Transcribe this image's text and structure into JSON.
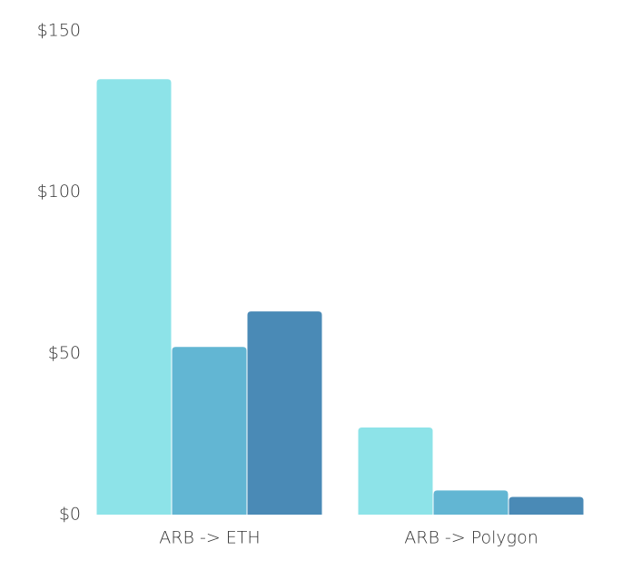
{
  "chart_data": {
    "type": "bar",
    "categories": [
      "ARB -> ETH",
      "ARB -> Polygon"
    ],
    "series": [
      {
        "color": "#8de3e8",
        "values": [
          135,
          27
        ]
      },
      {
        "color": "#62b6d3",
        "values": [
          52,
          7.5
        ]
      },
      {
        "color": "#4a8ab6",
        "values": [
          63,
          5.5
        ]
      }
    ],
    "ylim": [
      0,
      150
    ],
    "yticks": [
      {
        "value": 0,
        "label": "$0"
      },
      {
        "value": 50,
        "label": "$50"
      },
      {
        "value": 100,
        "label": "$100"
      },
      {
        "value": 150,
        "label": "$150"
      }
    ],
    "grid": false
  }
}
